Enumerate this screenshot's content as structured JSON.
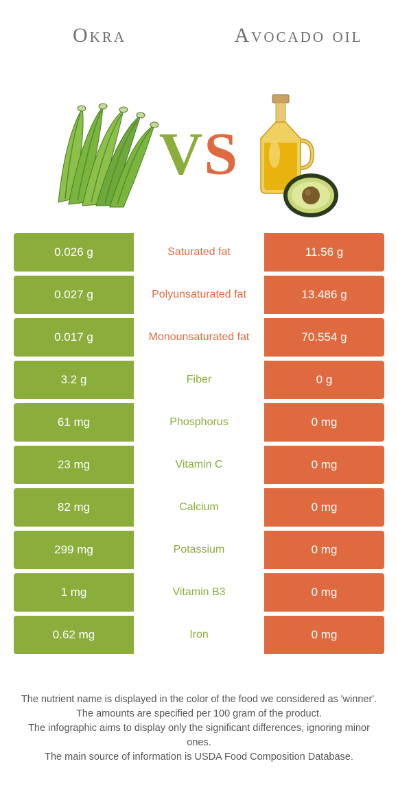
{
  "header": {
    "left": "Okra",
    "right": "Avocado oil"
  },
  "vs": {
    "v": "V",
    "s": "S"
  },
  "colors": {
    "left_bg": "#8aad3c",
    "right_bg": "#e06a3f",
    "mid_bg": "#ffffff",
    "okra_green": "#6da83a",
    "okra_dark": "#4a7a26",
    "oil_yellow": "#e8b30e",
    "oil_bottle": "#d89a0a",
    "avocado_skin": "#2a3a1a",
    "avocado_flesh": "#c9d67a",
    "avocado_pit": "#7a5a2a",
    "text_grey": "#707070",
    "footer_text": "#555555"
  },
  "rows": [
    {
      "left": "0.026 g",
      "label": "Saturated fat",
      "right": "11.56 g",
      "winner": "right"
    },
    {
      "left": "0.027 g",
      "label": "Polyunsaturated fat",
      "right": "13.486 g",
      "winner": "right"
    },
    {
      "left": "0.017 g",
      "label": "Monounsaturated fat",
      "right": "70.554 g",
      "winner": "right"
    },
    {
      "left": "3.2 g",
      "label": "Fiber",
      "right": "0 g",
      "winner": "left"
    },
    {
      "left": "61 mg",
      "label": "Phosphorus",
      "right": "0 mg",
      "winner": "left"
    },
    {
      "left": "23 mg",
      "label": "Vitamin C",
      "right": "0 mg",
      "winner": "left"
    },
    {
      "left": "82 mg",
      "label": "Calcium",
      "right": "0 mg",
      "winner": "left"
    },
    {
      "left": "299 mg",
      "label": "Potassium",
      "right": "0 mg",
      "winner": "left"
    },
    {
      "left": "1 mg",
      "label": "Vitamin B3",
      "right": "0 mg",
      "winner": "left"
    },
    {
      "left": "0.62 mg",
      "label": "Iron",
      "right": "0 mg",
      "winner": "left"
    }
  ],
  "footer": {
    "l1": "The nutrient name is displayed in the color of the food we considered as 'winner'.",
    "l2": "The amounts are specified per 100 gram of the product.",
    "l3": "The infographic aims to display only the significant differences, ignoring minor ones.",
    "l4": "The main source of information is USDA Food Composition Database."
  }
}
